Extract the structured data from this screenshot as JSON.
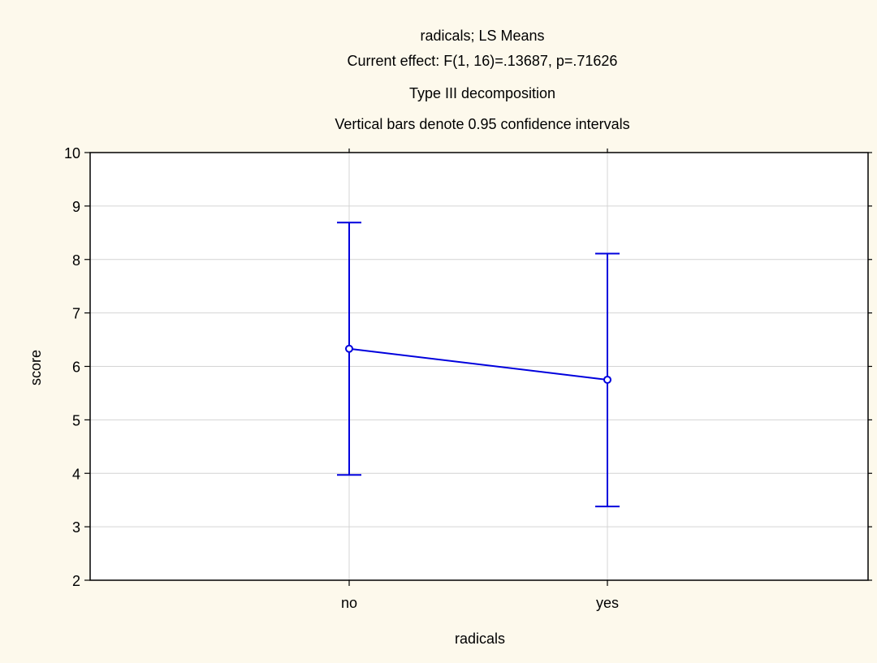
{
  "chart_data": {
    "type": "line",
    "title_lines": [
      "radicals; LS Means",
      "Current effect: F(1, 16)=.13687, p=.71626",
      "Type III decomposition",
      "Vertical bars denote 0.95 confidence intervals"
    ],
    "xlabel": "radicals",
    "ylabel": "score",
    "categories": [
      "no",
      "yes"
    ],
    "y_ticks": [
      2,
      3,
      4,
      5,
      6,
      7,
      8,
      9,
      10
    ],
    "ylim": [
      2,
      10
    ],
    "grid": true,
    "series": [
      {
        "values": [
          6.33,
          5.75
        ],
        "ci_lower": [
          3.97,
          3.38
        ],
        "ci_upper": [
          8.69,
          8.11
        ],
        "color": "#0000dd"
      }
    ],
    "colors": {
      "background": "#fdf9ec",
      "plot_area": "#ffffff",
      "grid": "#d4d4d4",
      "series": "#0000dd"
    }
  }
}
